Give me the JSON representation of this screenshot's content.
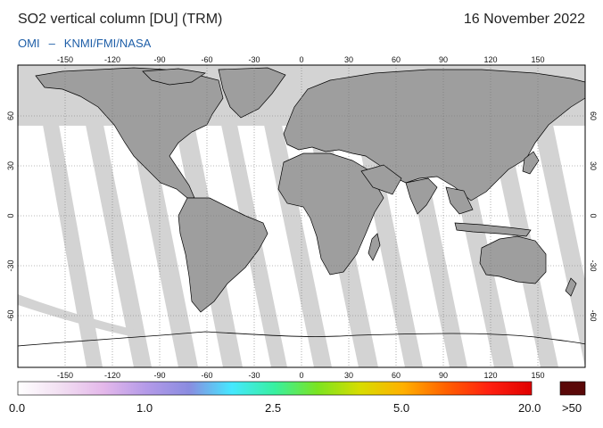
{
  "header": {
    "title": "SO2 vertical column [DU] (TRM)",
    "date": "16 November 2022",
    "credit_left": "OMI",
    "credit_sep": "–",
    "credit_right": "KNMI/FMI/NASA"
  },
  "map": {
    "projection": "equirectangular",
    "lon_range": [
      -180,
      180
    ],
    "lat_range": [
      -90,
      90
    ],
    "lon_ticks": [
      "-150",
      "-120",
      "-90",
      "-60",
      "-30",
      "0",
      "30",
      "60",
      "90",
      "120",
      "150"
    ],
    "lat_ticks": [
      "60",
      "30",
      "0",
      "-30",
      "-60"
    ],
    "colors": {
      "land_no_data": "#9e9e9e",
      "sea_no_data": "#d3d3d3",
      "coast": "#000000",
      "grid": "#777777"
    }
  },
  "colorbar": {
    "labels": [
      "0.0",
      "1.0",
      "2.5",
      "5.0",
      "20.0",
      ">50"
    ],
    "stops": [
      "#ffffff",
      "#f2dff2",
      "#e4b8ea",
      "#b49ae8",
      "#8a8ce0",
      "#44e8ff",
      "#38f0a0",
      "#7be420",
      "#d8dc00",
      "#ffb000",
      "#ff6000",
      "#ff2010",
      "#e00000"
    ],
    "overflow_color": "#5a0808"
  }
}
